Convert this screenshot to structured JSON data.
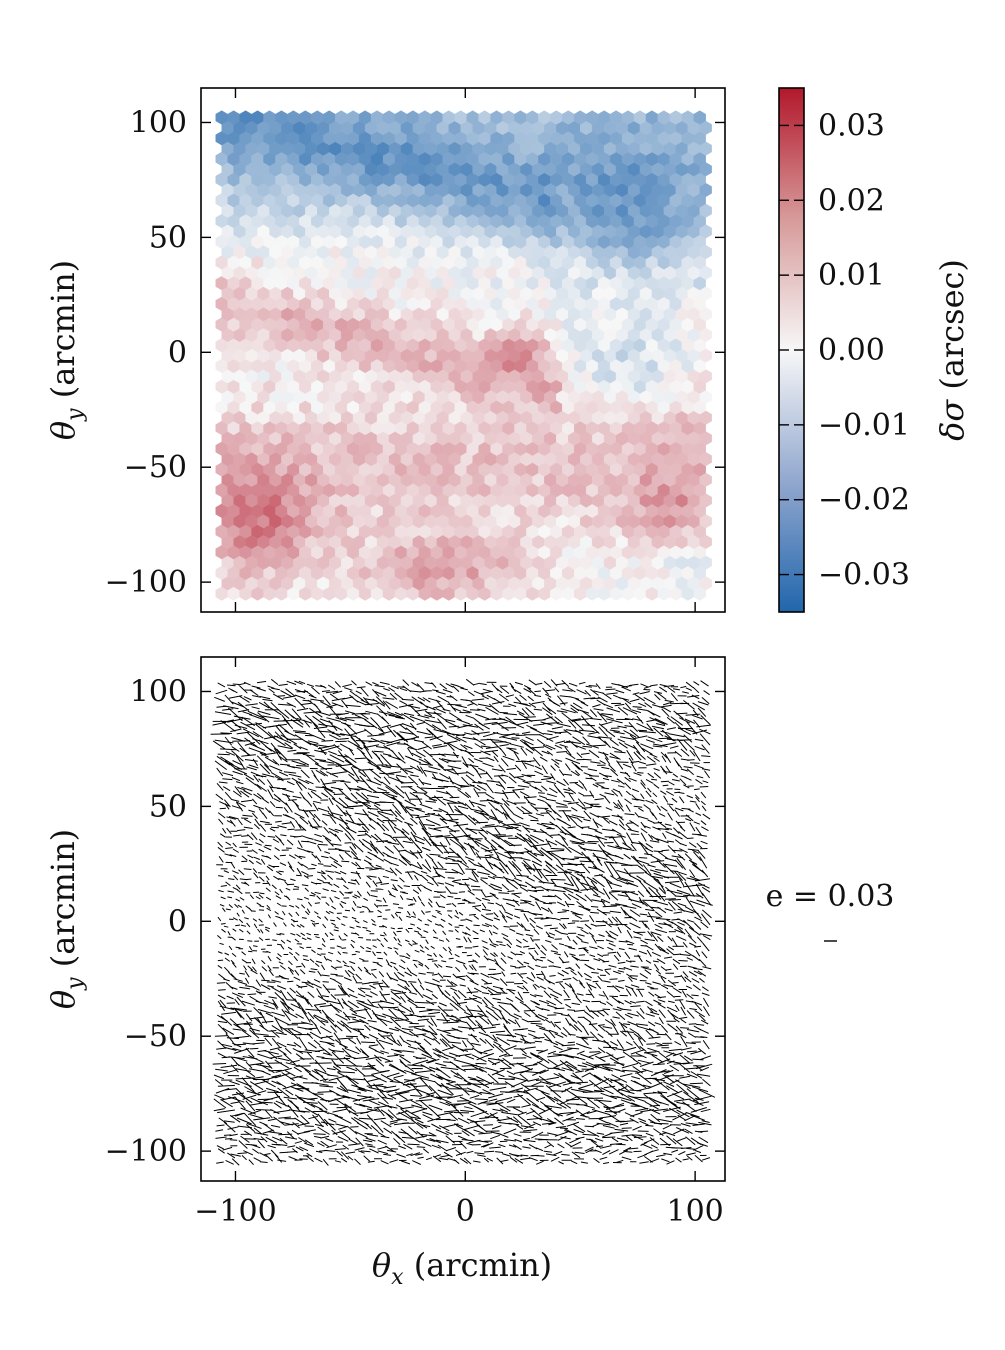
{
  "chart_data": [
    {
      "type": "heatmap",
      "xlabel": "θ_x (arcmin)",
      "ylabel": "θ_y (arcmin)",
      "xlim": [
        -115,
        113
      ],
      "ylim": [
        -113,
        115
      ],
      "xticks": [
        -100,
        0,
        100
      ],
      "yticks": [
        -100,
        -50,
        0,
        50,
        100
      ],
      "ytick_labels": [
        "−100",
        "−50",
        "0",
        "50",
        "100"
      ],
      "grid": false,
      "colorbar": {
        "label": "δσ (arcsec)",
        "range": [
          -0.035,
          0.035
        ],
        "ticks": [
          -0.03,
          -0.02,
          -0.01,
          0.0,
          0.01,
          0.02,
          0.03
        ],
        "tick_labels": [
          "−0.03",
          "−0.02",
          "−0.01",
          "0.00",
          "0.01",
          "0.02",
          "0.03"
        ],
        "colors": [
          "#2166ac",
          "#f7f7f7",
          "#b2182b"
        ]
      },
      "field": {
        "description_of_pattern": "negative band across top (y>40), strongest top-right and top-center; positive below, strongest bottom-left and lower-center",
        "grid_x_range": [
          -106,
          106
        ],
        "grid_y_range": [
          -105,
          105
        ]
      }
    },
    {
      "type": "scatter",
      "xlabel": "θ_x (arcmin)",
      "ylabel": "θ_y (arcmin)",
      "xlim": [
        -115,
        113
      ],
      "ylim": [
        -113,
        115
      ],
      "xticks": [
        -100,
        0,
        100
      ],
      "xtick_labels": [
        "−100",
        "0",
        "100"
      ],
      "yticks": [
        -100,
        -50,
        0,
        50,
        100
      ],
      "ytick_labels": [
        "−100",
        "−50",
        "0",
        "50",
        "100"
      ],
      "grid": false,
      "whisker_reference": {
        "label": "e = 0.03",
        "value": 0.03
      }
    }
  ]
}
